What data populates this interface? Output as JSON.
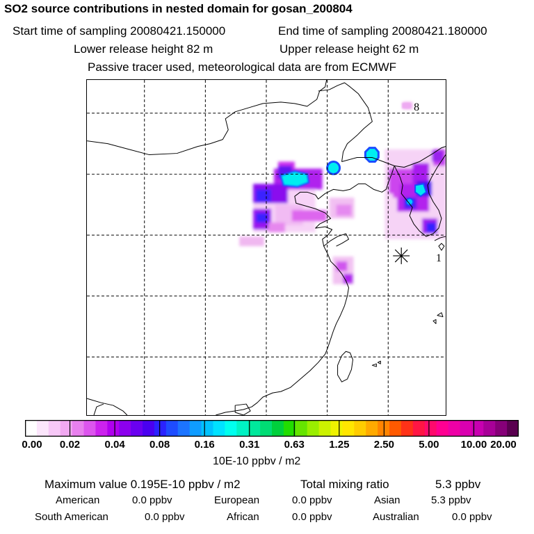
{
  "header": {
    "title": "SO2 source contributions in nested domain for gosan_200804",
    "start_label": "Start time of sampling 20080421.150000",
    "end_label": "End time of sampling 20080421.180000",
    "lower_label": "Lower release height   82 m",
    "upper_label": "Upper release height   62 m",
    "note": "Passive tracer used, meteorological data are from ECMWF"
  },
  "map": {
    "station_labels": {
      "top": "8",
      "receptor": "1"
    }
  },
  "colorbar": {
    "tick_labels": [
      "0.00",
      "0.02",
      "0.04",
      "0.08",
      "0.16",
      "0.31",
      "0.63",
      "1.25",
      "2.50",
      "5.00",
      "10.00",
      "20.00"
    ],
    "colors": [
      "#ffffff",
      "#fce6fc",
      "#f7c8f7",
      "#f1a8f1",
      "#e880ee",
      "#dd55ee",
      "#cc22ee",
      "#b000ee",
      "#8c00ee",
      "#6a00f0",
      "#4a00f0",
      "#2a22ff",
      "#1e4cff",
      "#1c74ff",
      "#0f9cff",
      "#00c2ff",
      "#00e2ff",
      "#00ffee",
      "#00f2c4",
      "#00e89c",
      "#00dc74",
      "#00d03c",
      "#22dd00",
      "#66e400",
      "#9aee00",
      "#ccf200",
      "#eef200",
      "#ffe600",
      "#ffcc00",
      "#ffaa00",
      "#ff8400",
      "#ff5a00",
      "#ff3218",
      "#ff1644",
      "#ff0a6c",
      "#ff0092",
      "#ee00a6",
      "#da00b0",
      "#c800b0",
      "#a80098",
      "#860078",
      "#5a0050"
    ],
    "units": "10E-10 ppbv / m2"
  },
  "summary": {
    "max_label": "Maximum value  0.195E-10 ppbv / m2",
    "total_label": "Total mixing ratio",
    "total_value": "5.3 ppbv",
    "regions": [
      {
        "name": "American",
        "value": "0.0 ppbv"
      },
      {
        "name": "European",
        "value": "0.0 ppbv"
      },
      {
        "name": "Asian",
        "value": "5.3 ppbv"
      },
      {
        "name": "South American",
        "value": "0.0 ppbv"
      },
      {
        "name": "African",
        "value": "0.0 ppbv"
      },
      {
        "name": "Australian",
        "value": "0.0 ppbv"
      }
    ]
  }
}
